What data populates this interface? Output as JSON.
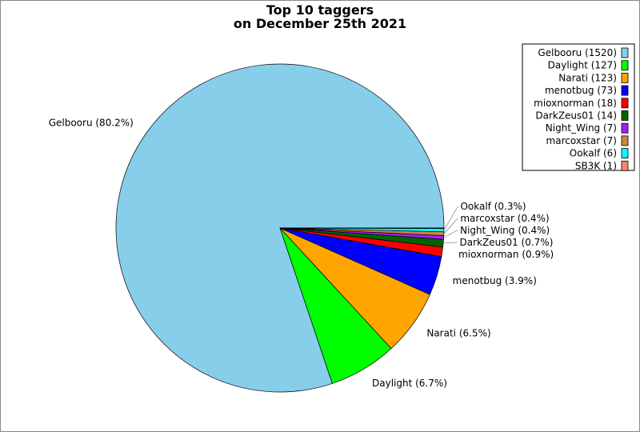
{
  "chart_data": {
    "type": "pie",
    "title_line1": "Top 10 taggers",
    "title_line2": "on December 25th 2021",
    "start_angle_deg": 0,
    "direction": "counterclockwise",
    "legend_placement": "top-right",
    "slices": [
      {
        "name": "Gelbooru",
        "value": 1520,
        "color": "#87ceeb",
        "legend": "Gelbooru (1520)",
        "label": "Gelbooru (80.2%)"
      },
      {
        "name": "Daylight",
        "value": 127,
        "color": "#00ff00",
        "legend": "Daylight (127)",
        "label": "Daylight (6.7%)"
      },
      {
        "name": "Narati",
        "value": 123,
        "color": "#ffa500",
        "legend": "Narati (123)",
        "label": "Narati (6.5%)"
      },
      {
        "name": "menotbug",
        "value": 73,
        "color": "#0000ff",
        "legend": "menotbug (73)",
        "label": "menotbug (3.9%)"
      },
      {
        "name": "mioxnorman",
        "value": 18,
        "color": "#ff0000",
        "legend": "mioxnorman (18)",
        "label": "mioxnorman (0.9%)"
      },
      {
        "name": "DarkZeus01",
        "value": 14,
        "color": "#006400",
        "legend": "DarkZeus01 (14)",
        "label": "DarkZeus01 (0.7%)"
      },
      {
        "name": "Night_Wing",
        "value": 7,
        "color": "#a020f0",
        "legend": "Night_Wing (7)",
        "label": "Night_Wing (0.4%)"
      },
      {
        "name": "marcoxstar",
        "value": 7,
        "color": "#cd853f",
        "legend": "marcoxstar (7)",
        "label": "marcoxstar (0.4%)"
      },
      {
        "name": "Ookalf",
        "value": 6,
        "color": "#00ffff",
        "legend": "Ookalf (6)",
        "label": "Ookalf (0.3%)"
      },
      {
        "name": "SB3K",
        "value": 1,
        "color": "#fa8072",
        "legend": "SB3K (1)",
        "label": null
      }
    ]
  }
}
